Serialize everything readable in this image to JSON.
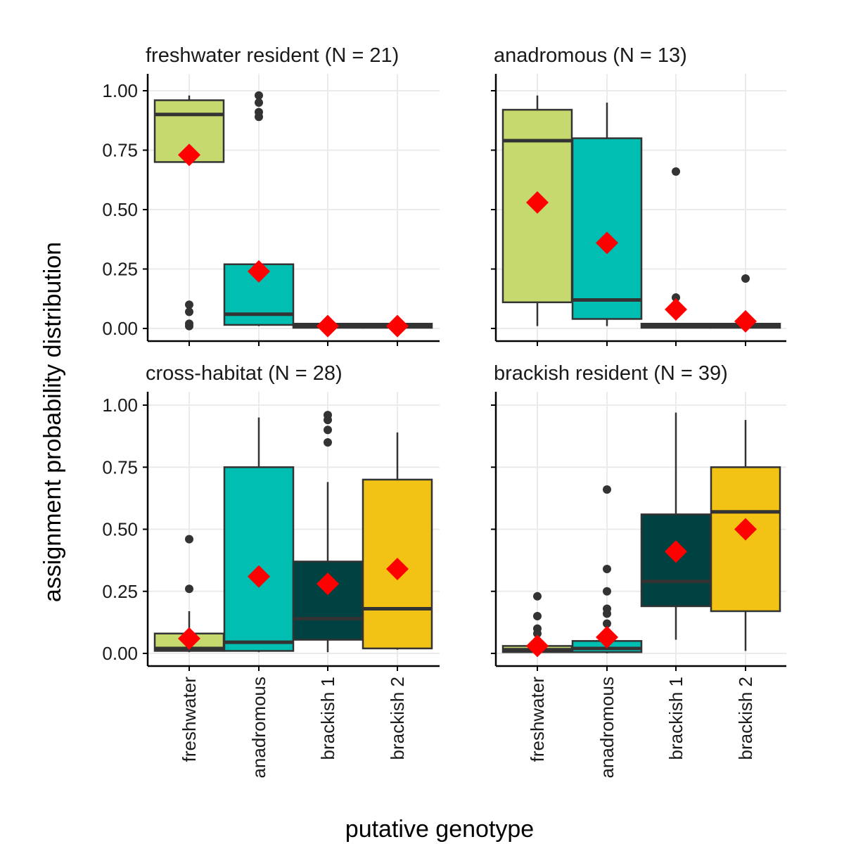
{
  "chart_data": {
    "type": "boxplot",
    "xlabel": "putative genotype",
    "ylabel": "assignment probability distribution",
    "ylim": [
      0,
      1
    ],
    "yticks": [
      0,
      0.25,
      0.5,
      0.75,
      1
    ],
    "ytick_labels": [
      "0.00",
      "0.25",
      "0.50",
      "0.75",
      "1.00"
    ],
    "categories": [
      "freshwater",
      "anadromous",
      "brackish 1",
      "brackish 2"
    ],
    "colors": {
      "freshwater": "#c5d96f",
      "anadromous": "#00bfb2",
      "brackish 1": "#004242",
      "brackish 2": "#f2c314",
      "mean_marker": "#ff0000",
      "outlier": "#333333"
    },
    "panels": [
      {
        "title": "freshwater resident (N = 21)",
        "boxes": [
          {
            "category": "freshwater",
            "whisker_low": 0.7,
            "q1": 0.7,
            "median": 0.9,
            "q3": 0.96,
            "whisker_high": 0.98,
            "mean": 0.73,
            "outliers": [
              0.1,
              0.07,
              0.02,
              0.01
            ]
          },
          {
            "category": "anadromous",
            "whisker_low": 0.01,
            "q1": 0.015,
            "median": 0.06,
            "q3": 0.27,
            "whisker_high": 0.27,
            "mean": 0.24,
            "outliers": [
              0.98,
              0.95,
              0.91,
              0.89
            ]
          },
          {
            "category": "brackish 1",
            "whisker_low": 0.0,
            "q1": 0.003,
            "median": 0.01,
            "q3": 0.02,
            "whisker_high": 0.03,
            "mean": 0.01,
            "outliers": []
          },
          {
            "category": "brackish 2",
            "whisker_low": 0.0,
            "q1": 0.003,
            "median": 0.01,
            "q3": 0.02,
            "whisker_high": 0.02,
            "mean": 0.01,
            "outliers": []
          }
        ]
      },
      {
        "title": "anadromous (N = 13)",
        "boxes": [
          {
            "category": "freshwater",
            "whisker_low": 0.01,
            "q1": 0.11,
            "median": 0.79,
            "q3": 0.92,
            "whisker_high": 0.98,
            "mean": 0.53,
            "outliers": []
          },
          {
            "category": "anadromous",
            "whisker_low": 0.01,
            "q1": 0.04,
            "median": 0.12,
            "q3": 0.8,
            "whisker_high": 0.95,
            "mean": 0.36,
            "outliers": []
          },
          {
            "category": "brackish 1",
            "whisker_low": 0.0,
            "q1": 0.003,
            "median": 0.01,
            "q3": 0.02,
            "whisker_high": 0.02,
            "mean": 0.08,
            "outliers": [
              0.66,
              0.13
            ]
          },
          {
            "category": "brackish 2",
            "whisker_low": 0.0,
            "q1": 0.003,
            "median": 0.01,
            "q3": 0.02,
            "whisker_high": 0.02,
            "mean": 0.03,
            "outliers": [
              0.21
            ]
          }
        ]
      },
      {
        "title": "cross-habitat (N = 28)",
        "boxes": [
          {
            "category": "freshwater",
            "whisker_low": 0.005,
            "q1": 0.01,
            "median": 0.02,
            "q3": 0.08,
            "whisker_high": 0.17,
            "mean": 0.06,
            "outliers": [
              0.46,
              0.26
            ]
          },
          {
            "category": "anadromous",
            "whisker_low": 0.005,
            "q1": 0.01,
            "median": 0.045,
            "q3": 0.75,
            "whisker_high": 0.95,
            "mean": 0.31,
            "outliers": []
          },
          {
            "category": "brackish 1",
            "whisker_low": 0.005,
            "q1": 0.055,
            "median": 0.14,
            "q3": 0.37,
            "whisker_high": 0.69,
            "mean": 0.28,
            "outliers": [
              0.96,
              0.94,
              0.9,
              0.85
            ]
          },
          {
            "category": "brackish 2",
            "whisker_low": 0.015,
            "q1": 0.02,
            "median": 0.18,
            "q3": 0.7,
            "whisker_high": 0.89,
            "mean": 0.34,
            "outliers": []
          }
        ]
      },
      {
        "title": "brackish resident (N = 39)",
        "boxes": [
          {
            "category": "freshwater",
            "whisker_low": 0.0,
            "q1": 0.005,
            "median": 0.015,
            "q3": 0.03,
            "whisker_high": 0.05,
            "mean": 0.03,
            "outliers": [
              0.23,
              0.15,
              0.1,
              0.08
            ]
          },
          {
            "category": "anadromous",
            "whisker_low": 0.0,
            "q1": 0.005,
            "median": 0.02,
            "q3": 0.05,
            "whisker_high": 0.1,
            "mean": 0.065,
            "outliers": [
              0.66,
              0.34,
              0.25,
              0.18,
              0.16,
              0.12
            ]
          },
          {
            "category": "brackish 1",
            "whisker_low": 0.055,
            "q1": 0.19,
            "median": 0.29,
            "q3": 0.56,
            "whisker_high": 0.97,
            "mean": 0.41,
            "outliers": []
          },
          {
            "category": "brackish 2",
            "whisker_low": 0.01,
            "q1": 0.17,
            "median": 0.57,
            "q3": 0.75,
            "whisker_high": 0.94,
            "mean": 0.5,
            "outliers": []
          }
        ]
      }
    ]
  }
}
